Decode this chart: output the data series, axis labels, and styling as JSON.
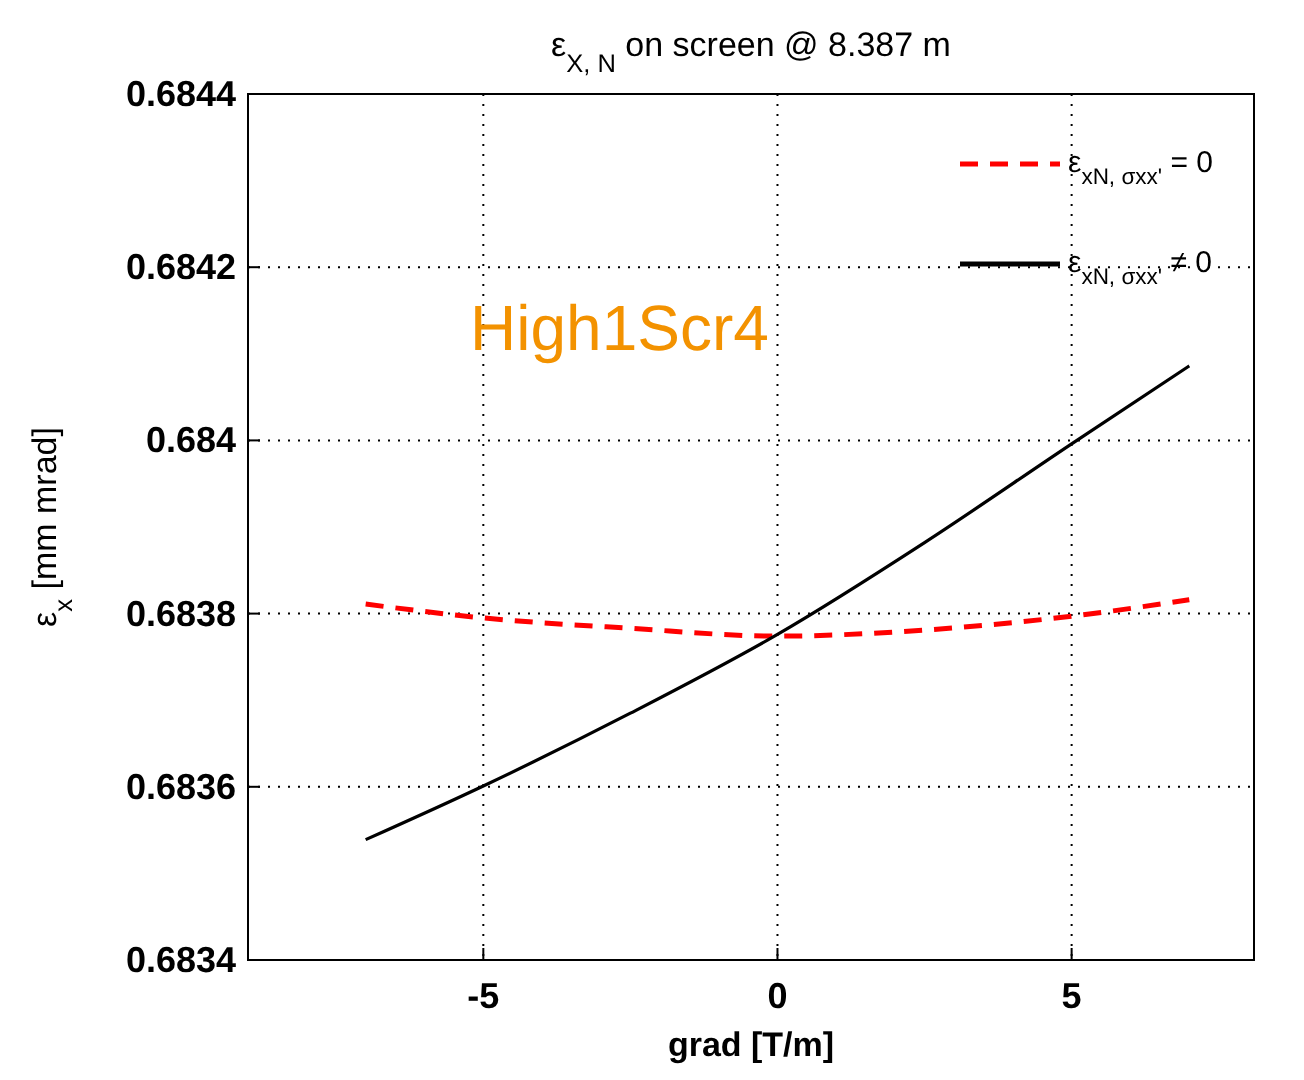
{
  "chart_data": {
    "type": "line",
    "title": "ε$_{X, N}$ on screen @ 8.387 m",
    "xlabel": "grad [T/m]",
    "ylabel": "ε$_{x}$ [mm mrad]",
    "x": [
      -7,
      -5,
      -2.5,
      0,
      2.5,
      5,
      7
    ],
    "series": [
      {
        "name": "ε$_{xN, σ}$$_{xx'}$ = 0",
        "color": "#ff0000",
        "line_style": "dashed",
        "values": [
          0.683811,
          0.683795,
          0.683783,
          0.683774,
          0.683781,
          0.683797,
          0.683816
        ]
      },
      {
        "name": "ε$_{xN, σ}$$_{xx'}$ ≠ 0",
        "color": "#000000",
        "line_style": "solid",
        "values": [
          0.683539,
          0.683601,
          0.683685,
          0.683776,
          0.683882,
          0.683996,
          0.684086
        ]
      }
    ],
    "xlim": [
      -9,
      8.1
    ],
    "xticks": [
      -5,
      0,
      5
    ],
    "ylim": [
      0.6834,
      0.6844
    ],
    "yticks": [
      0.6834,
      0.6836,
      0.6838,
      0.684,
      0.6842,
      0.6844
    ],
    "grid": true,
    "legend": "top right",
    "annotations": [
      "High1Scr4"
    ]
  }
}
